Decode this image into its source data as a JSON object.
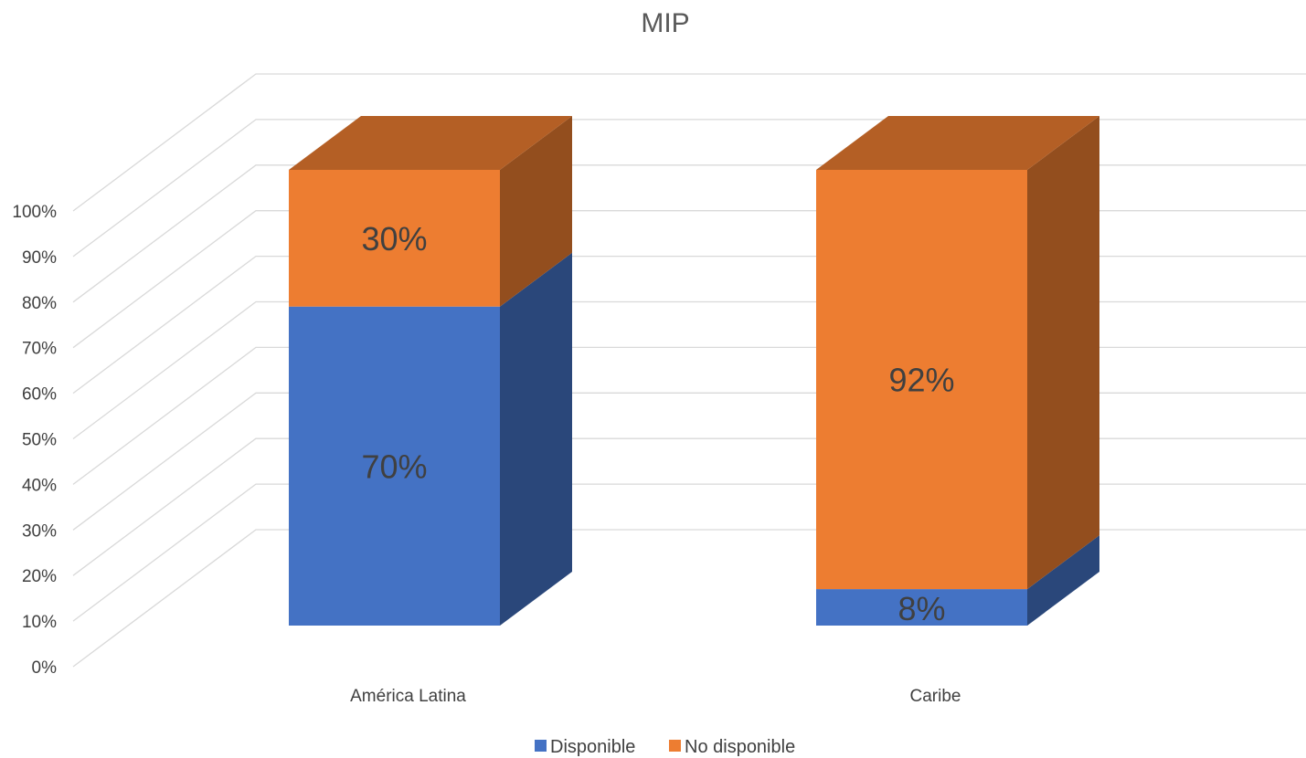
{
  "chart_data": {
    "type": "bar",
    "stacked": true,
    "three_d": true,
    "title": "MIP",
    "categories": [
      "América Latina",
      "Caribe"
    ],
    "series": [
      {
        "name": "Disponible",
        "values": [
          70,
          8
        ],
        "labels": [
          "70%",
          "8%"
        ]
      },
      {
        "name": "No disponible",
        "values": [
          30,
          92
        ],
        "labels": [
          "30%",
          "92%"
        ]
      }
    ],
    "ylim": [
      0,
      100
    ],
    "yticks": [
      0,
      10,
      20,
      30,
      40,
      50,
      60,
      70,
      80,
      90,
      100
    ],
    "ytick_labels": [
      "0%",
      "10%",
      "20%",
      "30%",
      "40%",
      "50%",
      "60%",
      "70%",
      "80%",
      "90%",
      "100%"
    ],
    "grid": true,
    "legend_position": "bottom",
    "colors": {
      "Disponible": "#4472c4",
      "No disponible": "#ed7d31",
      "gridline": "#d9d9d9",
      "text": "#404040"
    }
  }
}
